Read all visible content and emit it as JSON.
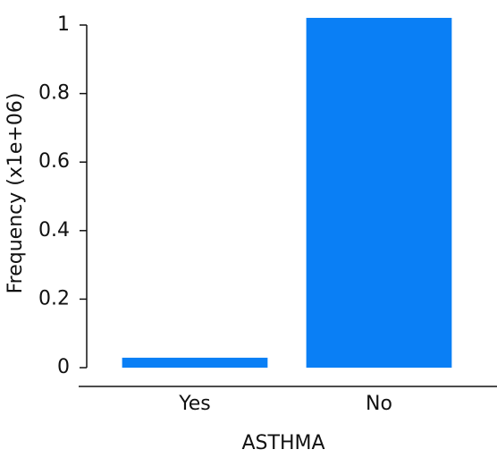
{
  "chart_data": {
    "type": "bar",
    "x_label": "ASTHMA",
    "y_label": "Frequency (x1e+06)",
    "categories": [
      "Yes",
      "No"
    ],
    "values": [
      0.029,
      1.021
    ],
    "color": "#0a7ff5",
    "ylim": [
      0,
      1
    ],
    "yticks": [
      0,
      0.2,
      0.4,
      0.6,
      0.8,
      1
    ],
    "grid": false
  }
}
